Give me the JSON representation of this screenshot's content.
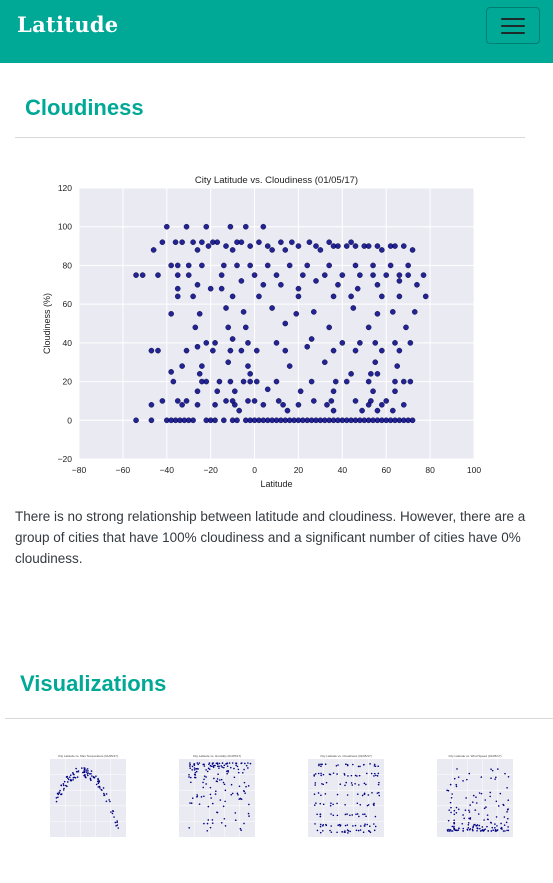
{
  "navbar": {
    "brand": "Latitude",
    "menu_icon": "hamburger-menu-icon"
  },
  "sections": {
    "cloudiness": {
      "heading": "Cloudiness",
      "description": "There is no strong relationship between latitude and cloudiness. However, there are a group of cities that have 100% cloudiness and a significant number of cities have 0% cloudiness."
    },
    "visualizations": {
      "heading": "Visualizations"
    }
  },
  "colors": {
    "brand": "#00a896",
    "plot_bg": "#eaeaf2",
    "marker": "#000080",
    "grid": "#ffffff"
  },
  "chart_data": [
    {
      "type": "scatter",
      "title": "City Latitude vs. Cloudiness (01/05/17)",
      "xlabel": "Latitude",
      "ylabel": "Cloudiness (%)",
      "xlim": [
        -80,
        100
      ],
      "ylim": [
        -20,
        120
      ],
      "xticks": [
        -80,
        -60,
        -40,
        -20,
        0,
        20,
        40,
        60,
        80,
        100
      ],
      "yticks": [
        -20,
        0,
        20,
        40,
        60,
        80,
        100,
        120
      ],
      "grid": true,
      "points": [
        [
          -54,
          75
        ],
        [
          -51,
          75
        ],
        [
          -46,
          88
        ],
        [
          -44,
          75
        ],
        [
          -42,
          92
        ],
        [
          -40,
          100
        ],
        [
          -36,
          92
        ],
        [
          -35,
          80
        ],
        [
          -35,
          75
        ],
        [
          -33,
          92
        ],
        [
          -31,
          100
        ],
        [
          -30,
          75
        ],
        [
          -28,
          92
        ],
        [
          -26,
          88
        ],
        [
          -24,
          92
        ],
        [
          -22,
          100
        ],
        [
          -21,
          90
        ],
        [
          -19,
          92
        ],
        [
          -17,
          92
        ],
        [
          -15,
          75
        ],
        [
          -13,
          90
        ],
        [
          -11,
          100
        ],
        [
          -10,
          88
        ],
        [
          -8,
          92
        ],
        [
          -6,
          92
        ],
        [
          -4,
          100
        ],
        [
          -2,
          90
        ],
        [
          0,
          75
        ],
        [
          2,
          92
        ],
        [
          4,
          100
        ],
        [
          6,
          90
        ],
        [
          8,
          88
        ],
        [
          10,
          75
        ],
        [
          12,
          92
        ],
        [
          14,
          88
        ],
        [
          17,
          92
        ],
        [
          20,
          90
        ],
        [
          22,
          75
        ],
        [
          25,
          92
        ],
        [
          28,
          90
        ],
        [
          30,
          88
        ],
        [
          32,
          75
        ],
        [
          34,
          92
        ],
        [
          36,
          90
        ],
        [
          38,
          90
        ],
        [
          40,
          75
        ],
        [
          42,
          90
        ],
        [
          44,
          92
        ],
        [
          46,
          90
        ],
        [
          48,
          75
        ],
        [
          50,
          90
        ],
        [
          52,
          90
        ],
        [
          54,
          75
        ],
        [
          56,
          90
        ],
        [
          58,
          88
        ],
        [
          60,
          75
        ],
        [
          62,
          90
        ],
        [
          64,
          90
        ],
        [
          66,
          75
        ],
        [
          68,
          90
        ],
        [
          70,
          75
        ],
        [
          72,
          88
        ],
        [
          77,
          75
        ],
        [
          -38,
          80
        ],
        [
          -30,
          80
        ],
        [
          -24,
          80
        ],
        [
          -14,
          80
        ],
        [
          -8,
          80
        ],
        [
          -2,
          80
        ],
        [
          6,
          80
        ],
        [
          16,
          80
        ],
        [
          24,
          80
        ],
        [
          34,
          80
        ],
        [
          46,
          80
        ],
        [
          54,
          80
        ],
        [
          62,
          80
        ],
        [
          70,
          80
        ],
        [
          -35,
          68
        ],
        [
          -26,
          70
        ],
        [
          -20,
          68
        ],
        [
          -15,
          68
        ],
        [
          -6,
          72
        ],
        [
          4,
          70
        ],
        [
          12,
          70
        ],
        [
          20,
          68
        ],
        [
          28,
          72
        ],
        [
          38,
          70
        ],
        [
          47,
          68
        ],
        [
          56,
          70
        ],
        [
          66,
          72
        ],
        [
          74,
          70
        ],
        [
          -35,
          64
        ],
        [
          -28,
          64
        ],
        [
          -10,
          64
        ],
        [
          2,
          64
        ],
        [
          20,
          64
        ],
        [
          36,
          64
        ],
        [
          44,
          64
        ],
        [
          58,
          64
        ],
        [
          66,
          64
        ],
        [
          78,
          64
        ],
        [
          -38,
          55
        ],
        [
          -25,
          55
        ],
        [
          -13,
          58
        ],
        [
          -5,
          56
        ],
        [
          8,
          58
        ],
        [
          19,
          55
        ],
        [
          27,
          56
        ],
        [
          45,
          58
        ],
        [
          56,
          55
        ],
        [
          63,
          56
        ],
        [
          73,
          56
        ],
        [
          -27,
          48
        ],
        [
          -12,
          48
        ],
        [
          -4,
          48
        ],
        [
          14,
          50
        ],
        [
          34,
          48
        ],
        [
          52,
          48
        ],
        [
          69,
          48
        ],
        [
          -22,
          40
        ],
        [
          -18,
          40
        ],
        [
          -10,
          42
        ],
        [
          -3,
          40
        ],
        [
          10,
          40
        ],
        [
          26,
          42
        ],
        [
          40,
          40
        ],
        [
          48,
          40
        ],
        [
          55,
          40
        ],
        [
          64,
          40
        ],
        [
          71,
          40
        ],
        [
          -47,
          36
        ],
        [
          -44,
          36
        ],
        [
          -31,
          36
        ],
        [
          -26,
          38
        ],
        [
          -19,
          36
        ],
        [
          -11,
          36
        ],
        [
          -6,
          36
        ],
        [
          1,
          36
        ],
        [
          14,
          36
        ],
        [
          24,
          38
        ],
        [
          36,
          36
        ],
        [
          46,
          36
        ],
        [
          58,
          36
        ],
        [
          66,
          36
        ],
        [
          -33,
          28
        ],
        [
          -24,
          28
        ],
        [
          -12,
          30
        ],
        [
          -3,
          28
        ],
        [
          16,
          28
        ],
        [
          32,
          30
        ],
        [
          55,
          30
        ],
        [
          65,
          28
        ],
        [
          -38,
          25
        ],
        [
          -25,
          24
        ],
        [
          -2,
          24
        ],
        [
          44,
          24
        ],
        [
          53,
          24
        ],
        [
          56,
          24
        ],
        [
          -37,
          20
        ],
        [
          -24,
          20
        ],
        [
          -22,
          20
        ],
        [
          -16,
          20
        ],
        [
          -11,
          20
        ],
        [
          -5,
          20
        ],
        [
          -2,
          20
        ],
        [
          1,
          20
        ],
        [
          10,
          20
        ],
        [
          26,
          20
        ],
        [
          37,
          20
        ],
        [
          42,
          20
        ],
        [
          52,
          20
        ],
        [
          64,
          20
        ],
        [
          68,
          20
        ],
        [
          71,
          20
        ],
        [
          -26,
          15
        ],
        [
          -17,
          15
        ],
        [
          -9,
          15
        ],
        [
          6,
          16
        ],
        [
          21,
          15
        ],
        [
          36,
          15
        ],
        [
          54,
          15
        ],
        [
          64,
          15
        ],
        [
          -42,
          10
        ],
        [
          -35,
          10
        ],
        [
          -31,
          10
        ],
        [
          -13,
          10
        ],
        [
          -10,
          10
        ],
        [
          -3,
          10
        ],
        [
          0,
          10
        ],
        [
          11,
          10
        ],
        [
          27,
          10
        ],
        [
          35,
          10
        ],
        [
          46,
          10
        ],
        [
          53,
          10
        ],
        [
          60,
          10
        ],
        [
          -47,
          8
        ],
        [
          -33,
          8
        ],
        [
          -26,
          8
        ],
        [
          -18,
          8
        ],
        [
          -9,
          8
        ],
        [
          4,
          8
        ],
        [
          13,
          8
        ],
        [
          20,
          8
        ],
        [
          33,
          8
        ],
        [
          52,
          8
        ],
        [
          58,
          8
        ],
        [
          68,
          8
        ],
        [
          -7,
          5
        ],
        [
          15,
          5
        ],
        [
          36,
          5
        ],
        [
          49,
          5
        ],
        [
          56,
          5
        ],
        [
          63,
          5
        ],
        [
          -54,
          0
        ],
        [
          -47,
          0
        ],
        [
          -40,
          0
        ],
        [
          -38,
          0
        ],
        [
          -36,
          0
        ],
        [
          -34,
          0
        ],
        [
          -32,
          0
        ],
        [
          -30,
          0
        ],
        [
          -28,
          0
        ],
        [
          -22,
          0
        ],
        [
          -20,
          0
        ],
        [
          -18,
          0
        ],
        [
          -14,
          0
        ],
        [
          -10,
          0
        ],
        [
          -8,
          0
        ],
        [
          -4,
          0
        ],
        [
          -2,
          0
        ],
        [
          0,
          0
        ],
        [
          2,
          0
        ],
        [
          4,
          0
        ],
        [
          6,
          0
        ],
        [
          8,
          0
        ],
        [
          10,
          0
        ],
        [
          12,
          0
        ],
        [
          14,
          0
        ],
        [
          16,
          0
        ],
        [
          18,
          0
        ],
        [
          20,
          0
        ],
        [
          22,
          0
        ],
        [
          24,
          0
        ],
        [
          26,
          0
        ],
        [
          28,
          0
        ],
        [
          30,
          0
        ],
        [
          32,
          0
        ],
        [
          34,
          0
        ],
        [
          36,
          0
        ],
        [
          38,
          0
        ],
        [
          40,
          0
        ],
        [
          42,
          0
        ],
        [
          44,
          0
        ],
        [
          46,
          0
        ],
        [
          48,
          0
        ],
        [
          50,
          0
        ],
        [
          52,
          0
        ],
        [
          54,
          0
        ],
        [
          56,
          0
        ],
        [
          58,
          0
        ],
        [
          60,
          0
        ],
        [
          62,
          0
        ],
        [
          64,
          0
        ],
        [
          66,
          0
        ],
        [
          68,
          0
        ],
        [
          70,
          0
        ],
        [
          72,
          0
        ]
      ]
    },
    {
      "type": "scatter",
      "title": "City Latitude vs. Max Temperature (01/05/17)",
      "shape": "arch",
      "n": 110
    },
    {
      "type": "scatter",
      "title": "City Latitude vs. Humidity (01/05/17)",
      "shape": "top-dense",
      "n": 160
    },
    {
      "type": "scatter",
      "title": "City Latitude vs. Cloudiness (01/05/17)",
      "shape": "bands",
      "n": 160
    },
    {
      "type": "scatter",
      "title": "City Latitude vs. Wind Speed (01/05/17)",
      "shape": "bottom-dense",
      "n": 160
    }
  ]
}
